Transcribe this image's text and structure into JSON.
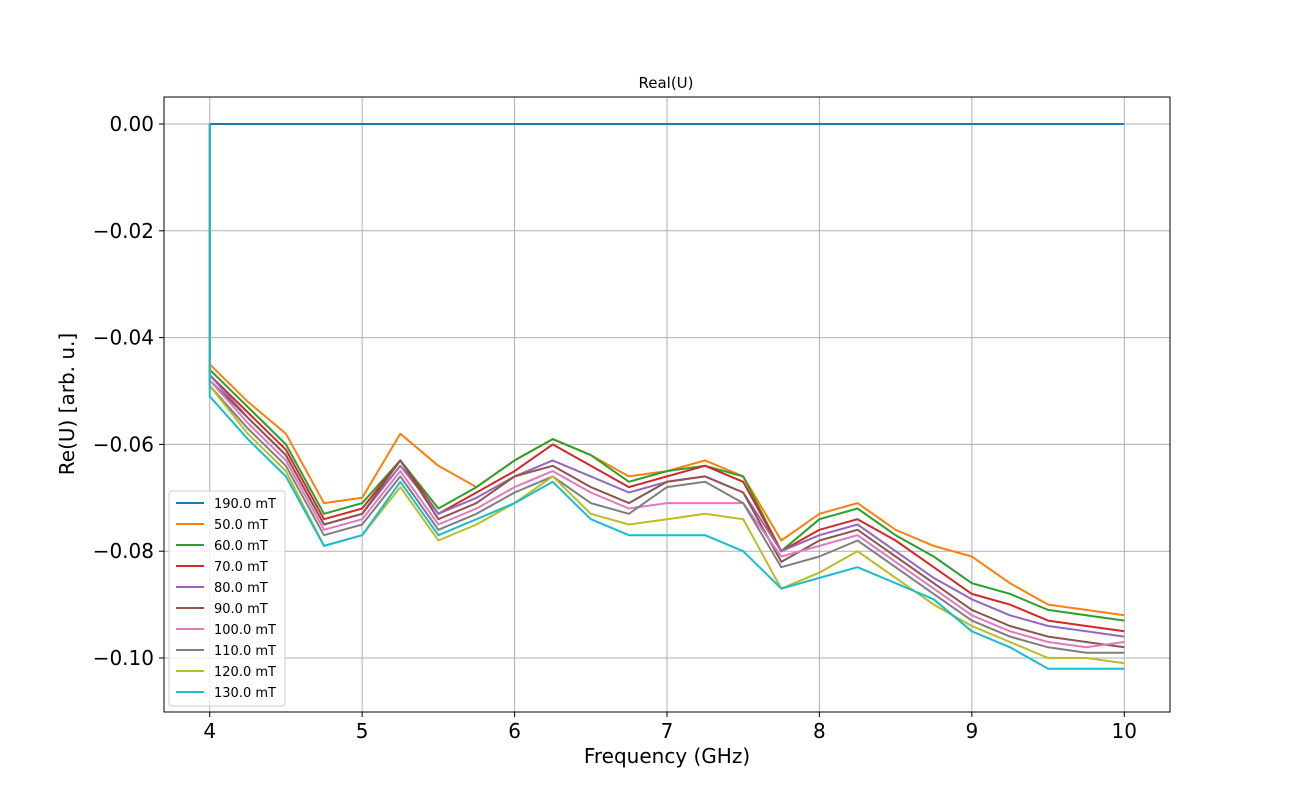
{
  "chart_data": {
    "type": "line",
    "title": "Real(U)",
    "xlabel": "Frequency (GHz)",
    "ylabel": "Re(U) [arb. u.]",
    "xlim": [
      3.7,
      10.3
    ],
    "ylim": [
      -0.1,
      0.0
    ],
    "xticks": [
      4,
      5,
      6,
      7,
      8,
      9,
      10
    ],
    "xtick_labels": [
      "4",
      "5",
      "6",
      "7",
      "8",
      "9",
      "10"
    ],
    "yticks": [
      0.0,
      -0.02,
      -0.04,
      -0.06,
      -0.08,
      -0.1
    ],
    "ytick_labels": [
      "0.00",
      "−0.02",
      "−0.04",
      "−0.06",
      "−0.08",
      "−0.10"
    ],
    "grid": true,
    "legend_position": "lower-left",
    "x": [
      4.0,
      4.25,
      4.5,
      4.75,
      5.0,
      5.25,
      5.5,
      5.75,
      6.0,
      6.25,
      6.5,
      6.75,
      7.0,
      7.25,
      7.5,
      7.75,
      8.0,
      8.25,
      8.5,
      8.75,
      9.0,
      9.25,
      9.5,
      9.75,
      10.0
    ],
    "series": [
      {
        "name": "190.0 mT",
        "color": "#1f77b4",
        "values": [
          0.0,
          0.0,
          0.0,
          0.0,
          0.0,
          0.0,
          0.0,
          0.0,
          0.0,
          0.0,
          0.0,
          0.0,
          0.0,
          0.0,
          0.0,
          0.0,
          0.0,
          0.0,
          0.0,
          0.0,
          0.0,
          0.0,
          0.0,
          0.0,
          0.0
        ]
      },
      {
        "name": "50.0 mT",
        "color": "#ff7f0e",
        "values": [
          -0.045,
          -0.052,
          -0.058,
          -0.071,
          -0.07,
          -0.058,
          -0.064,
          -0.068,
          -0.063,
          -0.059,
          -0.062,
          -0.066,
          -0.065,
          -0.063,
          -0.066,
          -0.078,
          -0.073,
          -0.071,
          -0.076,
          -0.079,
          -0.081,
          -0.086,
          -0.09,
          -0.091,
          -0.092
        ]
      },
      {
        "name": "60.0 mT",
        "color": "#2ca02c",
        "values": [
          -0.046,
          -0.053,
          -0.06,
          -0.073,
          -0.071,
          -0.063,
          -0.072,
          -0.068,
          -0.063,
          -0.059,
          -0.062,
          -0.067,
          -0.065,
          -0.064,
          -0.066,
          -0.08,
          -0.074,
          -0.072,
          -0.077,
          -0.081,
          -0.086,
          -0.088,
          -0.091,
          -0.092,
          -0.093
        ]
      },
      {
        "name": "70.0 mT",
        "color": "#d62728",
        "values": [
          -0.047,
          -0.054,
          -0.061,
          -0.074,
          -0.072,
          -0.063,
          -0.073,
          -0.069,
          -0.065,
          -0.06,
          -0.064,
          -0.068,
          -0.066,
          -0.064,
          -0.067,
          -0.08,
          -0.076,
          -0.074,
          -0.078,
          -0.083,
          -0.088,
          -0.09,
          -0.093,
          -0.094,
          -0.095
        ]
      },
      {
        "name": "80.0 mT",
        "color": "#9467bd",
        "values": [
          -0.047,
          -0.055,
          -0.062,
          -0.075,
          -0.073,
          -0.064,
          -0.073,
          -0.07,
          -0.066,
          -0.063,
          -0.066,
          -0.069,
          -0.067,
          -0.066,
          -0.069,
          -0.08,
          -0.077,
          -0.075,
          -0.08,
          -0.085,
          -0.089,
          -0.092,
          -0.094,
          -0.095,
          -0.096
        ]
      },
      {
        "name": "90.0 mT",
        "color": "#8c564b",
        "values": [
          -0.048,
          -0.055,
          -0.062,
          -0.075,
          -0.073,
          -0.063,
          -0.074,
          -0.071,
          -0.066,
          -0.064,
          -0.068,
          -0.071,
          -0.067,
          -0.066,
          -0.069,
          -0.082,
          -0.078,
          -0.076,
          -0.081,
          -0.086,
          -0.091,
          -0.094,
          -0.096,
          -0.097,
          -0.098
        ]
      },
      {
        "name": "100.0 mT",
        "color": "#e377c2",
        "values": [
          -0.048,
          -0.056,
          -0.063,
          -0.076,
          -0.074,
          -0.065,
          -0.075,
          -0.072,
          -0.068,
          -0.065,
          -0.069,
          -0.072,
          -0.071,
          -0.071,
          -0.071,
          -0.081,
          -0.079,
          -0.077,
          -0.082,
          -0.087,
          -0.092,
          -0.095,
          -0.097,
          -0.098,
          -0.097
        ]
      },
      {
        "name": "110.0 mT",
        "color": "#7f7f7f",
        "values": [
          -0.049,
          -0.057,
          -0.064,
          -0.077,
          -0.075,
          -0.066,
          -0.076,
          -0.073,
          -0.069,
          -0.066,
          -0.071,
          -0.073,
          -0.068,
          -0.067,
          -0.071,
          -0.083,
          -0.081,
          -0.078,
          -0.083,
          -0.088,
          -0.093,
          -0.096,
          -0.098,
          -0.099,
          -0.099
        ]
      },
      {
        "name": "120.0 mT",
        "color": "#bcbd22",
        "values": [
          -0.049,
          -0.058,
          -0.065,
          -0.079,
          -0.077,
          -0.068,
          -0.078,
          -0.075,
          -0.071,
          -0.066,
          -0.073,
          -0.075,
          -0.074,
          -0.073,
          -0.074,
          -0.087,
          -0.084,
          -0.08,
          -0.085,
          -0.09,
          -0.094,
          -0.097,
          -0.1,
          -0.1,
          -0.101
        ]
      },
      {
        "name": "130.0 mT",
        "color": "#17becf",
        "values": [
          -0.051,
          -0.059,
          -0.066,
          -0.079,
          -0.077,
          -0.067,
          -0.077,
          -0.074,
          -0.071,
          -0.067,
          -0.074,
          -0.077,
          -0.077,
          -0.077,
          -0.08,
          -0.087,
          -0.085,
          -0.083,
          -0.086,
          -0.089,
          -0.095,
          -0.098,
          -0.102,
          -0.102,
          -0.102
        ]
      }
    ]
  }
}
